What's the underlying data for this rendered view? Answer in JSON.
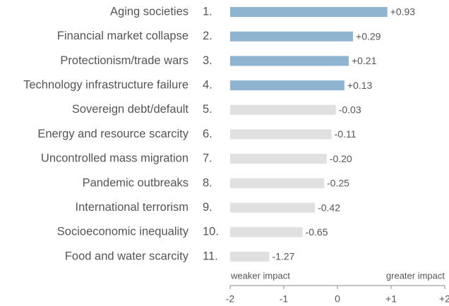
{
  "chart_data": {
    "type": "bar",
    "orientation": "horizontal",
    "categories": [
      "Aging societies",
      "Financial market collapse",
      "Protectionism/trade wars",
      "Technology infrastructure failure",
      "Sovereign debt/default",
      "Energy and resource scarcity",
      "Uncontrolled mass migration",
      "Pandemic outbreaks",
      "International terrorism",
      "Socioeconomic inequality",
      "Food and water scarcity"
    ],
    "ranks": [
      "1.",
      "2.",
      "3.",
      "4.",
      "5.",
      "6.",
      "7.",
      "8.",
      "9.",
      "10.",
      "11."
    ],
    "values": [
      0.93,
      0.29,
      0.21,
      0.13,
      -0.03,
      -0.11,
      -0.2,
      -0.25,
      -0.42,
      -0.65,
      -1.27
    ],
    "value_labels": [
      "+0.93",
      "+0.29",
      "+0.21",
      "+0.13",
      "-0.03",
      "-0.11",
      "-0.20",
      "-0.25",
      "-0.42",
      "-0.65",
      "-1.27"
    ],
    "positive_color": "#8fb4d0",
    "negative_color": "#e0e0e0",
    "xlim": [
      -2,
      2
    ],
    "xticks": [
      -2,
      -1,
      0,
      {
        "value": 1,
        "label": "+1"
      },
      {
        "value": 2,
        "label": "+2"
      }
    ],
    "annotations": [
      "weaker impact",
      "greater impact"
    ]
  }
}
